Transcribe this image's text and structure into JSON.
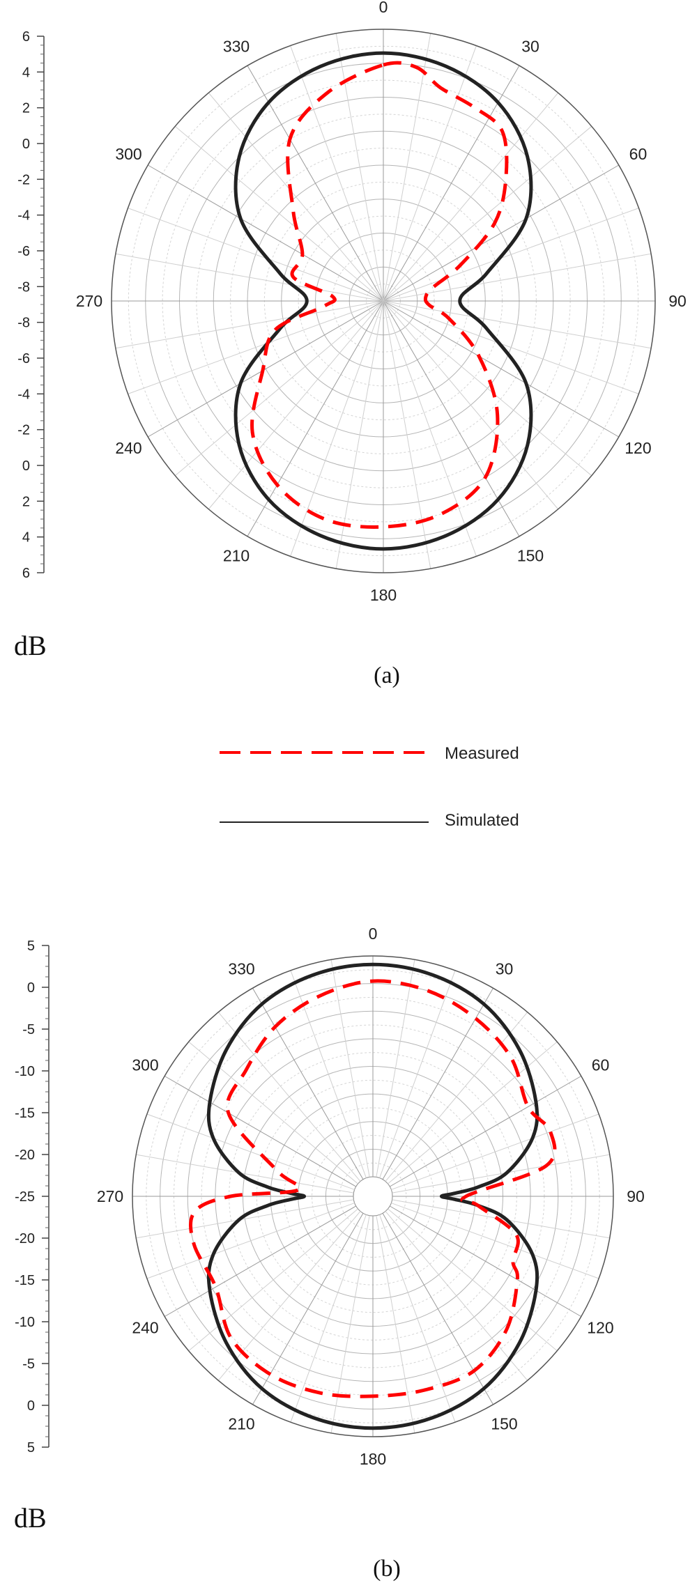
{
  "legend": {
    "measured": "Measured",
    "simulated": "Simulated",
    "measured_color": "#ff0000",
    "simulated_color": "#222222"
  },
  "chart_data": [
    {
      "type": "polar",
      "caption": "(a)",
      "unit_label": "dB",
      "radial_range": [
        -10,
        6
      ],
      "radial_tick_labels": [
        "6",
        "4",
        "2",
        "0",
        "-2",
        "-4",
        "-6",
        "-8",
        "-8",
        "-6",
        "-4",
        "-2",
        "0",
        "2",
        "4",
        "6"
      ],
      "angle_labels": [
        "0",
        "30",
        "60",
        "90",
        "120",
        "150",
        "180",
        "210",
        "240",
        "270",
        "300",
        "330"
      ],
      "series": [
        {
          "name": "Simulated",
          "style": "solid",
          "angles": [
            0,
            15,
            30,
            45,
            60,
            75,
            90,
            105,
            120,
            135,
            150,
            165,
            180,
            195,
            210,
            225,
            240,
            255,
            270,
            285,
            300,
            315,
            330,
            345
          ],
          "values": [
            4.6,
            4.3,
            3.5,
            2.0,
            -0.3,
            -3.7,
            -5.5,
            -3.7,
            -0.3,
            2.0,
            3.5,
            4.3,
            4.6,
            4.3,
            3.5,
            2.0,
            -0.3,
            -3.7,
            -5.5,
            -3.7,
            -0.3,
            2.0,
            3.5,
            4.3
          ]
        },
        {
          "name": "Measured",
          "style": "dashed",
          "angles": [
            0,
            8,
            15,
            25,
            35,
            45,
            55,
            65,
            75,
            85,
            95,
            105,
            120,
            135,
            150,
            165,
            180,
            195,
            210,
            225,
            240,
            255,
            265,
            275,
            285,
            300,
            315,
            330,
            345
          ],
          "values": [
            3.9,
            3.9,
            3.0,
            2.6,
            2.2,
            0.2,
            -2.0,
            -5.0,
            -7.0,
            -7.5,
            -7.3,
            -6.0,
            -3.5,
            -0.5,
            2.0,
            3.0,
            3.3,
            3.3,
            2.5,
            0.9,
            -1.8,
            -3.4,
            -6.5,
            -7.0,
            -4.5,
            -4.5,
            -2.5,
            1.0,
            2.7
          ]
        }
      ]
    },
    {
      "type": "polar",
      "caption": "(b)",
      "unit_label": "dB",
      "radial_range": [
        -30,
        6
      ],
      "radial_tick_labels": [
        "5",
        "0",
        "-5",
        "-10",
        "-15",
        "-20",
        "-25",
        "-20",
        "-15",
        "-10",
        "-5",
        "0",
        "5"
      ],
      "angle_labels": [
        "0",
        "30",
        "60",
        "90",
        "120",
        "150",
        "180",
        "210",
        "240",
        "270",
        "300",
        "330"
      ],
      "series": [
        {
          "name": "Simulated",
          "style": "solid",
          "angles": [
            0,
            15,
            30,
            45,
            60,
            70,
            80,
            85,
            88,
            90,
            92,
            95,
            100,
            110,
            120,
            135,
            150,
            165,
            180,
            195,
            210,
            225,
            240,
            250,
            260,
            265,
            268,
            270,
            272,
            275,
            280,
            290,
            300,
            315,
            330,
            345
          ],
          "values": [
            4.6,
            4.2,
            3.0,
            0.6,
            -2.5,
            -5.5,
            -11,
            -16,
            -20,
            -22,
            -20,
            -16,
            -11,
            -5.5,
            -2.5,
            0.6,
            3.0,
            4.2,
            4.6,
            4.2,
            3.0,
            0.6,
            -2.5,
            -5.5,
            -11,
            -16,
            -20,
            -22,
            -20,
            -16,
            -11,
            -5.5,
            -2.5,
            0.6,
            3.0,
            4.2
          ]
        },
        {
          "name": "Measured",
          "style": "dashed",
          "angles": [
            0,
            15,
            30,
            45,
            60,
            70,
            80,
            90,
            95,
            105,
            115,
            120,
            135,
            150,
            165,
            180,
            195,
            210,
            225,
            240,
            255,
            265,
            270,
            275,
            285,
            300,
            315,
            330,
            345
          ],
          "values": [
            1.9,
            1.5,
            0.3,
            -1.3,
            -4.0,
            -2.4,
            -4.5,
            -18,
            -16,
            -9.0,
            -8.0,
            -6.0,
            -2.4,
            -0.3,
            -0.5,
            -0.6,
            0.0,
            0.3,
            -0.5,
            -3.6,
            -3.0,
            -4.0,
            -10,
            -21,
            -17,
            -6.0,
            -4.0,
            -1.3,
            0.6
          ]
        }
      ]
    }
  ]
}
